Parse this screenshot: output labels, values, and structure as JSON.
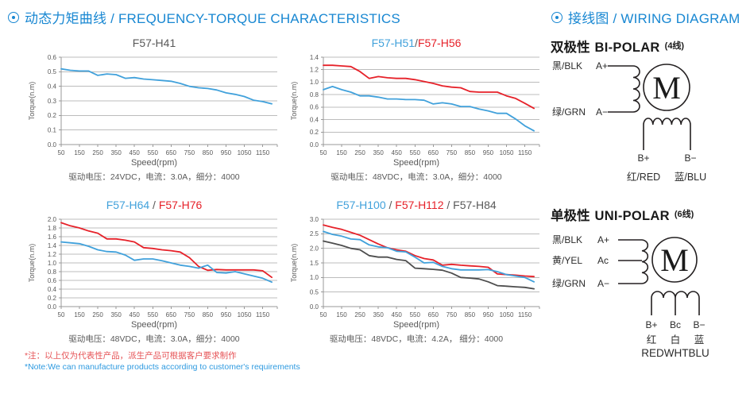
{
  "page": {
    "left_header": {
      "icon": "circle-dot",
      "title": "动态力矩曲线 / FREQUENCY-TORQUE CHARACTERISTICS"
    },
    "right_header": {
      "icon": "circle-dot",
      "title": "接线图 / WIRING DIAGRAM"
    },
    "notes": {
      "cn": "*注：以上仅为代表性产品，派生产品可根据客户要求制作",
      "en": "*Note:We can manufacture products according to customer's requirements"
    }
  },
  "colors": {
    "blue": "#41a1db",
    "red": "#e62129",
    "dark": "#4d4d4d",
    "gray": "#595959",
    "header_blue": "#1887d2",
    "grid": "#bcbcbc",
    "axis": "#999999"
  },
  "chart_data": [
    {
      "type": "line",
      "title_parts": [
        {
          "text": "F57-H41",
          "c": "gray"
        }
      ],
      "xlabel": "Speed(rpm)",
      "ylabel": "Torque(n.m)",
      "caption": "驱动电压：24VDC，电流：3.0A，细分：4000",
      "xlim": [
        50,
        1230
      ],
      "ylim": [
        0,
        0.6
      ],
      "ystep": 0.1,
      "xticks": [
        50,
        150,
        250,
        350,
        450,
        550,
        650,
        750,
        850,
        950,
        1050,
        1150
      ],
      "x": [
        50,
        100,
        150,
        200,
        250,
        300,
        350,
        400,
        450,
        500,
        550,
        600,
        650,
        700,
        750,
        800,
        850,
        900,
        950,
        1000,
        1050,
        1100,
        1150,
        1200
      ],
      "series": [
        {
          "name": "F57-H41",
          "c": "blue",
          "values": [
            0.52,
            0.51,
            0.505,
            0.505,
            0.475,
            0.485,
            0.48,
            0.455,
            0.46,
            0.45,
            0.445,
            0.44,
            0.435,
            0.42,
            0.4,
            0.39,
            0.385,
            0.375,
            0.355,
            0.345,
            0.33,
            0.305,
            0.295,
            0.28
          ]
        }
      ]
    },
    {
      "type": "line",
      "title_parts": [
        {
          "text": "F57-H51",
          "c": "blue"
        },
        {
          "text": "/",
          "c": "gray"
        },
        {
          "text": "F57-H56",
          "c": "red"
        }
      ],
      "xlabel": "Speed(rpm)",
      "ylabel": "Torque(n.m)",
      "caption": "驱动电压：48VDC，电流：3.0A，细分：4000",
      "xlim": [
        50,
        1230
      ],
      "ylim": [
        0,
        1.4
      ],
      "ystep": 0.2,
      "xticks": [
        50,
        150,
        250,
        350,
        450,
        550,
        650,
        750,
        850,
        950,
        1050,
        1150
      ],
      "x": [
        50,
        100,
        150,
        200,
        250,
        300,
        350,
        400,
        450,
        500,
        550,
        600,
        650,
        700,
        750,
        800,
        850,
        900,
        950,
        1000,
        1050,
        1100,
        1150,
        1200
      ],
      "series": [
        {
          "name": "F57-H56",
          "c": "red",
          "values": [
            1.27,
            1.27,
            1.26,
            1.25,
            1.17,
            1.06,
            1.09,
            1.07,
            1.06,
            1.06,
            1.04,
            1.01,
            0.98,
            0.94,
            0.92,
            0.91,
            0.85,
            0.84,
            0.84,
            0.84,
            0.78,
            0.74,
            0.66,
            0.58
          ]
        },
        {
          "name": "F57-H51",
          "c": "blue",
          "values": [
            0.88,
            0.93,
            0.88,
            0.84,
            0.78,
            0.78,
            0.76,
            0.73,
            0.73,
            0.72,
            0.72,
            0.71,
            0.65,
            0.67,
            0.65,
            0.61,
            0.61,
            0.57,
            0.54,
            0.5,
            0.5,
            0.41,
            0.3,
            0.22
          ]
        }
      ]
    },
    {
      "type": "line",
      "title_parts": [
        {
          "text": "F57-H64",
          "c": "blue"
        },
        {
          "text": " / ",
          "c": "gray"
        },
        {
          "text": "F57-H76",
          "c": "red"
        }
      ],
      "xlabel": "Speed(rpm)",
      "ylabel": "Torque(n.m)",
      "caption": "驱动电压：48VDC，电流：3.0A，细分：4000",
      "xlim": [
        50,
        1230
      ],
      "ylim": [
        0,
        2.0
      ],
      "ystep": 0.2,
      "xticks": [
        50,
        150,
        250,
        350,
        450,
        550,
        650,
        750,
        850,
        950,
        1050,
        1150
      ],
      "x": [
        50,
        100,
        150,
        200,
        250,
        300,
        350,
        400,
        450,
        500,
        550,
        600,
        650,
        700,
        750,
        800,
        850,
        900,
        950,
        1000,
        1050,
        1100,
        1150,
        1200
      ],
      "series": [
        {
          "name": "F57-H76",
          "c": "red",
          "values": [
            1.92,
            1.85,
            1.8,
            1.73,
            1.68,
            1.55,
            1.55,
            1.52,
            1.48,
            1.35,
            1.33,
            1.3,
            1.28,
            1.25,
            1.12,
            0.92,
            0.83,
            0.85,
            0.84,
            0.84,
            0.84,
            0.84,
            0.82,
            0.67
          ]
        },
        {
          "name": "F57-H64",
          "c": "blue",
          "values": [
            1.48,
            1.46,
            1.44,
            1.38,
            1.3,
            1.26,
            1.25,
            1.18,
            1.06,
            1.09,
            1.09,
            1.05,
            1.0,
            0.95,
            0.92,
            0.88,
            0.95,
            0.78,
            0.77,
            0.8,
            0.75,
            0.7,
            0.65,
            0.56
          ]
        }
      ]
    },
    {
      "type": "line",
      "title_parts": [
        {
          "text": "F57-H100",
          "c": "blue"
        },
        {
          "text": " / ",
          "c": "gray"
        },
        {
          "text": "F57-H112",
          "c": "red"
        },
        {
          "text": " / ",
          "c": "gray"
        },
        {
          "text": "F57-H84",
          "c": "gray"
        }
      ],
      "xlabel": "Speed(rpm)",
      "ylabel": "Torque(n.m)",
      "caption": "驱动电压：48VDC，电流：4.2A， 细分：4000",
      "xlim": [
        50,
        1230
      ],
      "ylim": [
        0,
        3.0
      ],
      "ystep": 0.5,
      "xticks": [
        50,
        150,
        250,
        350,
        450,
        550,
        650,
        750,
        850,
        950,
        1050,
        1150
      ],
      "x": [
        50,
        100,
        150,
        200,
        250,
        300,
        350,
        400,
        450,
        500,
        550,
        600,
        650,
        700,
        750,
        800,
        850,
        900,
        950,
        1000,
        1050,
        1100,
        1150,
        1200
      ],
      "series": [
        {
          "name": "F57-H112",
          "c": "red",
          "values": [
            2.8,
            2.72,
            2.65,
            2.55,
            2.45,
            2.3,
            2.15,
            2.02,
            1.95,
            1.9,
            1.75,
            1.65,
            1.6,
            1.42,
            1.45,
            1.42,
            1.4,
            1.38,
            1.35,
            1.12,
            1.1,
            1.08,
            1.05,
            1.03
          ]
        },
        {
          "name": "F57-H100",
          "c": "blue",
          "values": [
            2.58,
            2.48,
            2.42,
            2.32,
            2.3,
            2.12,
            2.05,
            2.02,
            1.9,
            1.88,
            1.7,
            1.5,
            1.52,
            1.38,
            1.3,
            1.26,
            1.26,
            1.26,
            1.27,
            1.2,
            1.1,
            1.05,
            1.0,
            0.85
          ]
        },
        {
          "name": "F57-H84",
          "c": "dark",
          "values": [
            2.25,
            2.18,
            2.1,
            2.0,
            1.95,
            1.75,
            1.7,
            1.7,
            1.62,
            1.58,
            1.32,
            1.3,
            1.28,
            1.25,
            1.15,
            1.0,
            0.98,
            0.95,
            0.85,
            0.72,
            0.7,
            0.68,
            0.66,
            0.61
          ]
        }
      ]
    }
  ],
  "wiring": {
    "bipolar": {
      "title_cn": "双极性",
      "title_en": "BI-POLAR",
      "wires_note": "(4线)",
      "a_plus_wire": "黑/BLK",
      "a_plus": "A+",
      "a_minus_wire": "绿/GRN",
      "a_minus": "A−",
      "motor": "M",
      "b_plus": "B+",
      "b_minus": "B−",
      "b_plus_wire": "红/RED",
      "b_minus_wire": "蓝/BLU"
    },
    "unipolar": {
      "title_cn": "单极性",
      "title_en": "UNI-POLAR",
      "wires_note": "(6线)",
      "a_plus_wire": "黑/BLK",
      "a_plus": "A+",
      "ac_wire": "黄/YEL",
      "ac": "Ac",
      "a_minus_wire": "绿/GRN",
      "a_minus": "A−",
      "motor": "M",
      "b_plus": "B+",
      "bc": "Bc",
      "b_minus": "B−",
      "b_colors_cn": [
        "红",
        "白",
        "蓝"
      ],
      "b_colors_en": "REDWHTBLU"
    }
  }
}
